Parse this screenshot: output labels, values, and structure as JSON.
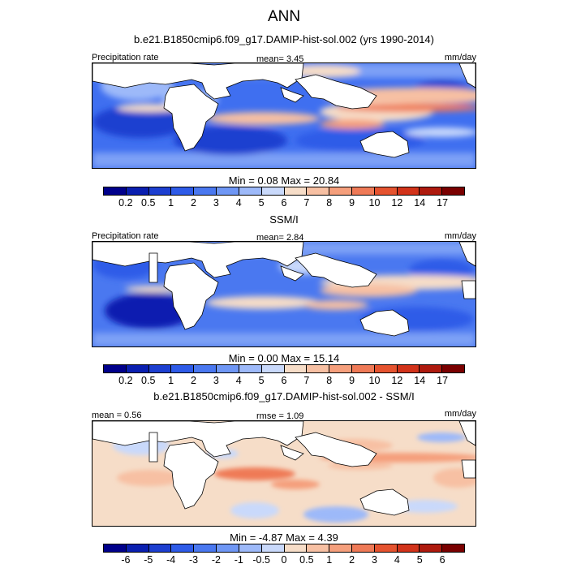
{
  "title": "ANN",
  "panels": [
    {
      "subtitle": "b.e21.B1850cmip6.f09_g17.DAMIP-hist-sol.002 (yrs 1990-2014)",
      "left_label": "Precipitation rate",
      "center_label": "mean=   3.45",
      "units": "mm/day",
      "minmax": "Min =   0.08 Max =  20.84",
      "ticks": [
        "0.2",
        "0.5",
        "1",
        "2",
        "3",
        "4",
        "5",
        "6",
        "7",
        "8",
        "9",
        "10",
        "12",
        "14",
        "17"
      ]
    },
    {
      "subtitle": "SSM/I",
      "left_label": "Precipitation rate",
      "center_label": "mean=   2.84",
      "units": "mm/day",
      "minmax": "Min =   0.00 Max =  15.14",
      "ticks": [
        "0.2",
        "0.5",
        "1",
        "2",
        "3",
        "4",
        "5",
        "6",
        "7",
        "8",
        "9",
        "10",
        "12",
        "14",
        "17"
      ]
    },
    {
      "subtitle": "b.e21.B1850cmip6.f09_g17.DAMIP-hist-sol.002 - SSM/I",
      "left_label": "mean =   0.56",
      "center_label": "rmse =   1.09",
      "units": "mm/day",
      "minmax": "Min =  -4.87 Max =   4.39",
      "ticks": [
        "-6",
        "-5",
        "-4",
        "-3",
        "-2",
        "-1",
        "-0.5",
        "0",
        "0.5",
        "1",
        "2",
        "3",
        "4",
        "5",
        "6"
      ]
    }
  ],
  "chart_data": [
    {
      "type": "heatmap",
      "title": "ANN",
      "subtitle": "b.e21.B1850cmip6.f09_g17.DAMIP-hist-sol.002 (yrs 1990-2014)",
      "variable": "Precipitation rate",
      "units": "mm/day",
      "mean": 3.45,
      "min": 0.08,
      "max": 20.84,
      "levels": [
        0.2,
        0.5,
        1,
        2,
        3,
        4,
        5,
        6,
        7,
        8,
        9,
        10,
        12,
        14,
        17
      ],
      "colors": [
        "#00008B",
        "#0a1fb0",
        "#1d3fd0",
        "#2e5be8",
        "#4a78f0",
        "#6f97f5",
        "#9db9f9",
        "#c9d9fb",
        "#f6ddc8",
        "#f7c0a3",
        "#f59f7c",
        "#ef7a57",
        "#e5532f",
        "#d2331a",
        "#ae1a0e",
        "#7a0000"
      ]
    },
    {
      "type": "heatmap",
      "title": "SSM/I",
      "variable": "Precipitation rate",
      "units": "mm/day",
      "mean": 2.84,
      "min": 0.0,
      "max": 15.14,
      "levels": [
        0.2,
        0.5,
        1,
        2,
        3,
        4,
        5,
        6,
        7,
        8,
        9,
        10,
        12,
        14,
        17
      ],
      "colors": [
        "#00008B",
        "#0a1fb0",
        "#1d3fd0",
        "#2e5be8",
        "#4a78f0",
        "#6f97f5",
        "#9db9f9",
        "#c9d9fb",
        "#f6ddc8",
        "#f7c0a3",
        "#f59f7c",
        "#ef7a57",
        "#e5532f",
        "#d2331a",
        "#ae1a0e",
        "#7a0000"
      ]
    },
    {
      "type": "heatmap",
      "title": "b.e21.B1850cmip6.f09_g17.DAMIP-hist-sol.002 - SSM/I",
      "units": "mm/day",
      "mean": 0.56,
      "rmse": 1.09,
      "min": -4.87,
      "max": 4.39,
      "levels": [
        -6,
        -5,
        -4,
        -3,
        -2,
        -1,
        -0.5,
        0,
        0.5,
        1,
        2,
        3,
        4,
        5,
        6
      ],
      "colors": [
        "#00008B",
        "#0a1fb0",
        "#1d3fd0",
        "#2e5be8",
        "#4a78f0",
        "#6f97f5",
        "#9db9f9",
        "#c9d9fb",
        "#f6ddc8",
        "#f7c0a3",
        "#f59f7c",
        "#ef7a57",
        "#e5532f",
        "#d2331a",
        "#ae1a0e",
        "#7a0000"
      ]
    }
  ]
}
